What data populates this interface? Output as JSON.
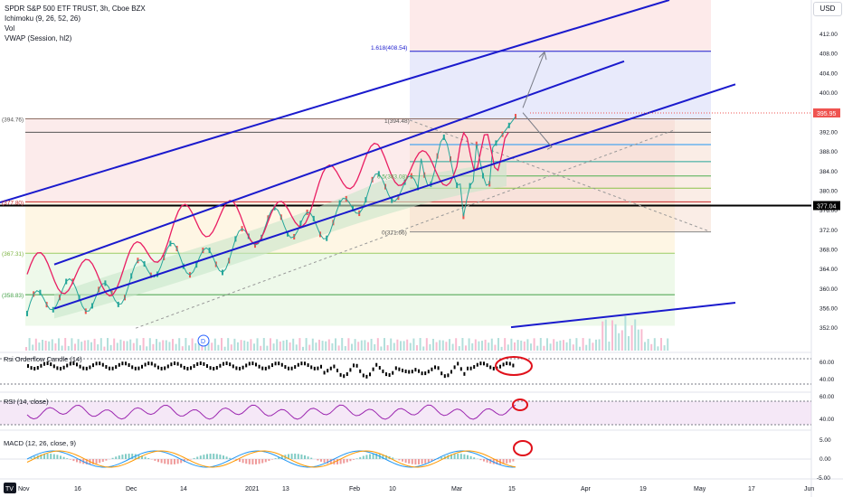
{
  "legend": {
    "title": "SPDR S&P 500 ETF TRUST, 3h, Cboe BZX",
    "ichimoku": "Ichimoku (9, 26, 52, 26)",
    "vol": "Vol",
    "vwap": "VWAP (Session, hl2)"
  },
  "currency": "USD",
  "price_axis": {
    "ticks": [
      "412.00",
      "408.00",
      "404.00",
      "400.00",
      "396.00",
      "392.00",
      "388.00",
      "384.00",
      "380.00",
      "376.00",
      "372.00",
      "368.00",
      "364.00",
      "360.00",
      "356.00",
      "352.00"
    ],
    "current_price": "395.95",
    "hline_label": "377.04"
  },
  "fib_levels": [
    {
      "label": "1.618(408.54)"
    },
    {
      "label": "1(394.48)"
    },
    {
      "label": "0.5(383.08)"
    },
    {
      "label": "0(371.66)"
    },
    {
      "label": "(394.76)"
    },
    {
      "label": "(377.80)"
    },
    {
      "label": "(367.31)"
    },
    {
      "label": "(358.83)"
    }
  ],
  "time_axis": [
    "Nov",
    "16",
    "Dec",
    "14",
    "2021",
    "13",
    "Feb",
    "10",
    "Mar",
    "15",
    "Apr",
    "19",
    "May",
    "17",
    "Jun"
  ],
  "panes": {
    "rsi_candle": {
      "label": "Rsi Orderflow Candle (14)",
      "ticks": [
        "60.00",
        "40.00"
      ]
    },
    "rsi": {
      "label": "RSI (14, close)",
      "ticks": [
        "60.00",
        "40.00"
      ]
    },
    "macd": {
      "label": "MACD (12, 26, close, 9)",
      "ticks": [
        "5.00",
        "0.00",
        "-5.00"
      ]
    }
  },
  "colors": {
    "channel": "#1a1acd",
    "rsi_line": "#9c27b0",
    "highlight_circle": "#e0101a",
    "price_line": "#e91e63"
  },
  "tv_logo": "TV"
}
